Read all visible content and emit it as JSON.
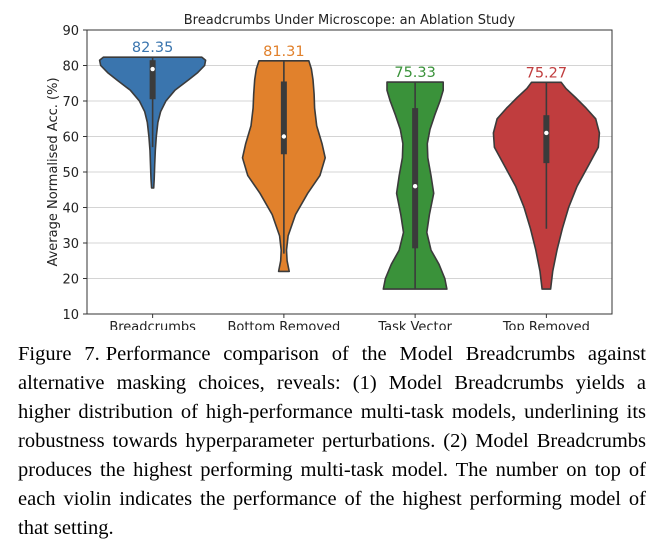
{
  "chart_data": {
    "type": "violin",
    "title": "Breadcrumbs Under Microscope: an Ablation Study",
    "xlabel": "",
    "ylabel": "Average Normalised Acc. (%)",
    "ylim": [
      10,
      90
    ],
    "yticks": [
      10,
      20,
      30,
      40,
      50,
      60,
      70,
      80,
      90
    ],
    "grid": "horizontal",
    "categories": [
      "Breadcrumbs",
      "Bottom Removed",
      "Task Vector",
      "Top Removed"
    ],
    "colors": [
      "#3a75ae",
      "#e1812c",
      "#3a923a",
      "#c03d3e"
    ],
    "annotations": [
      "82.35",
      "81.31",
      "75.33",
      "75.27"
    ],
    "max_values": [
      82.35,
      81.31,
      75.33,
      75.27
    ],
    "violins": [
      {
        "name": "Breadcrumbs",
        "min": 45.5,
        "max": 82.35,
        "q1": 70.5,
        "median": 79,
        "q3": 81.5,
        "whisker_low": 57,
        "whisker_high": 82.35,
        "density": [
          [
            45.5,
            0.02
          ],
          [
            48,
            0.03
          ],
          [
            52,
            0.04
          ],
          [
            56,
            0.05
          ],
          [
            60,
            0.07
          ],
          [
            64,
            0.1
          ],
          [
            67,
            0.15
          ],
          [
            70,
            0.25
          ],
          [
            73,
            0.42
          ],
          [
            76,
            0.68
          ],
          [
            78,
            0.85
          ],
          [
            80,
            0.98
          ],
          [
            81.5,
            1.0
          ],
          [
            82.35,
            0.93
          ]
        ]
      },
      {
        "name": "Bottom Removed",
        "min": 22,
        "max": 81.31,
        "q1": 55,
        "median": 60,
        "q3": 75.5,
        "whisker_low": 27,
        "whisker_high": 81.31,
        "density": [
          [
            22,
            0.1
          ],
          [
            25,
            0.06
          ],
          [
            28,
            0.05
          ],
          [
            32,
            0.08
          ],
          [
            38,
            0.22
          ],
          [
            44,
            0.45
          ],
          [
            49,
            0.68
          ],
          [
            54,
            0.78
          ],
          [
            58,
            0.72
          ],
          [
            63,
            0.62
          ],
          [
            68,
            0.58
          ],
          [
            72,
            0.57
          ],
          [
            76,
            0.55
          ],
          [
            79,
            0.52
          ],
          [
            81.31,
            0.47
          ]
        ]
      },
      {
        "name": "Task Vector",
        "min": 17,
        "max": 75.33,
        "q1": 28.5,
        "median": 46,
        "q3": 68,
        "whisker_low": 17,
        "whisker_high": 75.33,
        "density": [
          [
            17,
            0.6
          ],
          [
            20,
            0.56
          ],
          [
            24,
            0.45
          ],
          [
            28,
            0.3
          ],
          [
            33,
            0.22
          ],
          [
            38,
            0.27
          ],
          [
            44,
            0.35
          ],
          [
            49,
            0.3
          ],
          [
            54,
            0.24
          ],
          [
            58,
            0.23
          ],
          [
            62,
            0.28
          ],
          [
            66,
            0.37
          ],
          [
            70,
            0.47
          ],
          [
            73,
            0.53
          ],
          [
            75.33,
            0.53
          ]
        ]
      },
      {
        "name": "Top Removed",
        "min": 17,
        "max": 75.27,
        "q1": 52.5,
        "median": 61,
        "q3": 66,
        "whisker_low": 34,
        "whisker_high": 75.27,
        "density": [
          [
            17,
            0.08
          ],
          [
            22,
            0.12
          ],
          [
            28,
            0.2
          ],
          [
            34,
            0.3
          ],
          [
            40,
            0.42
          ],
          [
            46,
            0.58
          ],
          [
            52,
            0.8
          ],
          [
            57,
            0.98
          ],
          [
            61,
            1.0
          ],
          [
            65,
            0.93
          ],
          [
            68,
            0.75
          ],
          [
            71,
            0.55
          ],
          [
            73.5,
            0.37
          ],
          [
            75.27,
            0.28
          ]
        ]
      }
    ]
  },
  "caption": {
    "label": "Figure 7.",
    "text": "Performance comparison of the Model Breadcrumbs against alternative masking choices, reveals: (1) Model Breadcrumbs yields a higher distribution of high-performance multi-task models, underlining its robustness towards hyperparameter perturbations. (2) Model Breadcrumbs produces the highest performing multi-task model. The number on top of each violin indicates the performance of the highest performing model of that setting."
  }
}
